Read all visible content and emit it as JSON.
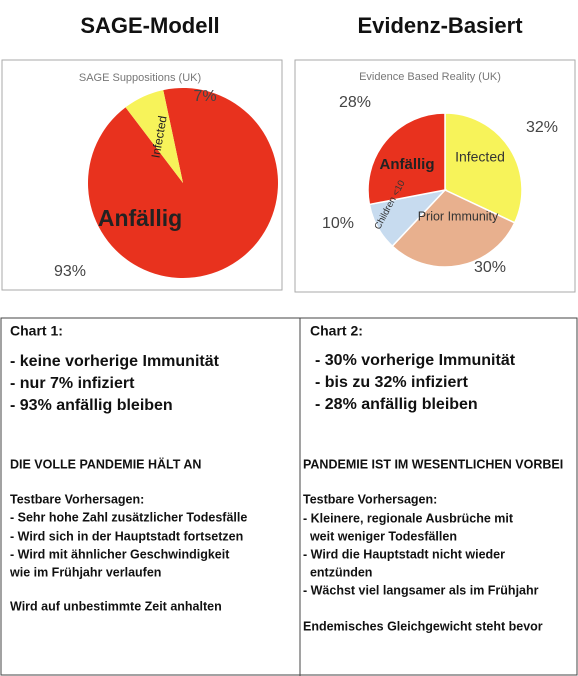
{
  "headings": [
    "SAGE-Modell",
    "Evidenz-Basiert"
  ],
  "chart_data": [
    {
      "type": "pie",
      "title": "SAGE Suppositions (UK)",
      "categories": [
        "Anfällig",
        "Infected"
      ],
      "values": [
        93,
        7
      ],
      "value_labels": [
        "93%",
        "7%"
      ],
      "colors": [
        "#e8321e",
        "#f7f35a"
      ]
    },
    {
      "type": "pie",
      "title": "Evidence Based Reality (UK)",
      "categories": [
        "Infected",
        "Prior Immunity",
        "Children <10",
        "Anfällig"
      ],
      "values": [
        32,
        30,
        10,
        28
      ],
      "value_labels": [
        "32%",
        "30%",
        "10%",
        "28%"
      ],
      "colors": [
        "#f7f35a",
        "#e8b08e",
        "#c7dbef",
        "#e8321e"
      ]
    }
  ],
  "table": {
    "columns": [
      {
        "header": "Chart 1:",
        "points": [
          "- keine vorherige Immunität",
          "- nur 7% infiziert",
          "- 93% anfällig bleiben"
        ],
        "statement": "DIE VOLLE PANDEMIE HÄLT AN",
        "predictions_title": "Testbare Vorhersagen:",
        "predictions": [
          "- Sehr hohe Zahl zusätzlicher Todesfälle",
          "- Wird sich in der Hauptstadt fortsetzen",
          "- Wird mit ähnlicher Geschwindigkeit",
          "wie im Frühjahr verlaufen"
        ],
        "conclusion": "Wird auf unbestimmte Zeit anhalten"
      },
      {
        "header": "Chart 2:",
        "points": [
          "- 30% vorherige Immunität",
          "- bis zu 32% infiziert",
          "- 28% anfällig bleiben"
        ],
        "statement": "PANDEMIE IST IM WESENTLICHEN VORBEI",
        "predictions_title": "Testbare Vorhersagen:",
        "predictions": [
          "- Kleinere, regionale Ausbrüche mit",
          "  weit weniger Todesfällen",
          "- Wird die Hauptstadt nicht wieder",
          "  entzünden",
          "- Wächst viel langsamer als im Frühjahr"
        ],
        "conclusion": "Endemisches Gleichgewicht steht bevor"
      }
    ]
  }
}
